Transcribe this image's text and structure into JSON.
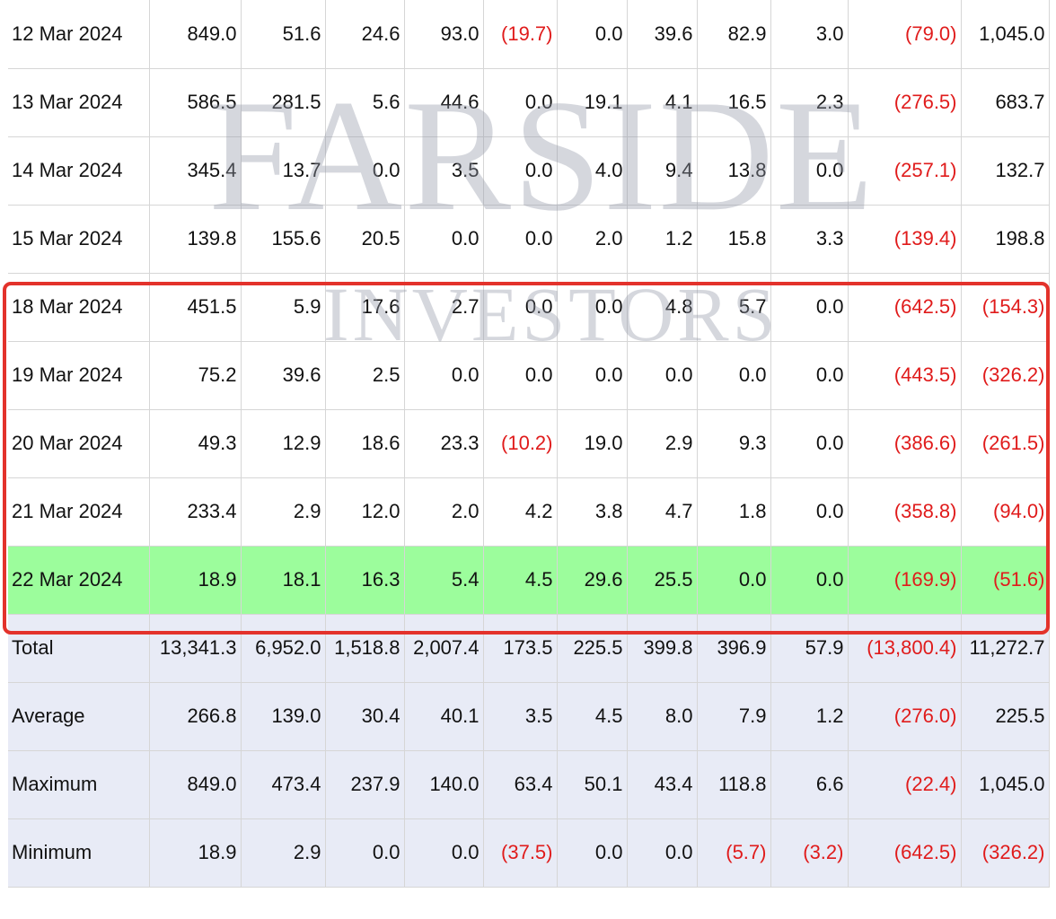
{
  "watermark": {
    "line1": "FARSIDE",
    "line2": "INVESTORS"
  },
  "rows": [
    {
      "date": "12 Mar 2024",
      "cells": [
        {
          "v": "849.0"
        },
        {
          "v": "51.6"
        },
        {
          "v": "24.6"
        },
        {
          "v": "93.0"
        },
        {
          "v": "(19.7)",
          "neg": true
        },
        {
          "v": "0.0"
        },
        {
          "v": "39.6"
        },
        {
          "v": "82.9"
        },
        {
          "v": "3.0"
        },
        {
          "v": "(79.0)",
          "neg": true
        },
        {
          "v": "1,045.0"
        }
      ]
    },
    {
      "date": "13 Mar 2024",
      "cells": [
        {
          "v": "586.5"
        },
        {
          "v": "281.5"
        },
        {
          "v": "5.6"
        },
        {
          "v": "44.6"
        },
        {
          "v": "0.0"
        },
        {
          "v": "19.1"
        },
        {
          "v": "4.1"
        },
        {
          "v": "16.5"
        },
        {
          "v": "2.3"
        },
        {
          "v": "(276.5)",
          "neg": true
        },
        {
          "v": "683.7"
        }
      ]
    },
    {
      "date": "14 Mar 2024",
      "cells": [
        {
          "v": "345.4"
        },
        {
          "v": "13.7"
        },
        {
          "v": "0.0"
        },
        {
          "v": "3.5"
        },
        {
          "v": "0.0"
        },
        {
          "v": "4.0"
        },
        {
          "v": "9.4"
        },
        {
          "v": "13.8"
        },
        {
          "v": "0.0"
        },
        {
          "v": "(257.1)",
          "neg": true
        },
        {
          "v": "132.7"
        }
      ]
    },
    {
      "date": "15 Mar 2024",
      "cells": [
        {
          "v": "139.8"
        },
        {
          "v": "155.6"
        },
        {
          "v": "20.5"
        },
        {
          "v": "0.0"
        },
        {
          "v": "0.0"
        },
        {
          "v": "2.0"
        },
        {
          "v": "1.2"
        },
        {
          "v": "15.8"
        },
        {
          "v": "3.3"
        },
        {
          "v": "(139.4)",
          "neg": true
        },
        {
          "v": "198.8"
        }
      ]
    },
    {
      "date": "18 Mar 2024",
      "cells": [
        {
          "v": "451.5"
        },
        {
          "v": "5.9"
        },
        {
          "v": "17.6"
        },
        {
          "v": "2.7"
        },
        {
          "v": "0.0"
        },
        {
          "v": "0.0"
        },
        {
          "v": "4.8"
        },
        {
          "v": "5.7"
        },
        {
          "v": "0.0"
        },
        {
          "v": "(642.5)",
          "neg": true
        },
        {
          "v": "(154.3)",
          "neg": true
        }
      ]
    },
    {
      "date": "19 Mar 2024",
      "cells": [
        {
          "v": "75.2"
        },
        {
          "v": "39.6"
        },
        {
          "v": "2.5"
        },
        {
          "v": "0.0"
        },
        {
          "v": "0.0"
        },
        {
          "v": "0.0"
        },
        {
          "v": "0.0"
        },
        {
          "v": "0.0"
        },
        {
          "v": "0.0"
        },
        {
          "v": "(443.5)",
          "neg": true
        },
        {
          "v": "(326.2)",
          "neg": true
        }
      ]
    },
    {
      "date": "20 Mar 2024",
      "cells": [
        {
          "v": "49.3"
        },
        {
          "v": "12.9"
        },
        {
          "v": "18.6"
        },
        {
          "v": "23.3"
        },
        {
          "v": "(10.2)",
          "neg": true
        },
        {
          "v": "19.0"
        },
        {
          "v": "2.9"
        },
        {
          "v": "9.3"
        },
        {
          "v": "0.0"
        },
        {
          "v": "(386.6)",
          "neg": true
        },
        {
          "v": "(261.5)",
          "neg": true
        }
      ]
    },
    {
      "date": "21 Mar 2024",
      "cells": [
        {
          "v": "233.4"
        },
        {
          "v": "2.9"
        },
        {
          "v": "12.0"
        },
        {
          "v": "2.0"
        },
        {
          "v": "4.2"
        },
        {
          "v": "3.8"
        },
        {
          "v": "4.7"
        },
        {
          "v": "1.8"
        },
        {
          "v": "0.0"
        },
        {
          "v": "(358.8)",
          "neg": true
        },
        {
          "v": "(94.0)",
          "neg": true
        }
      ]
    },
    {
      "date": "22 Mar 2024",
      "highlight": true,
      "cells": [
        {
          "v": "18.9"
        },
        {
          "v": "18.1"
        },
        {
          "v": "16.3"
        },
        {
          "v": "5.4"
        },
        {
          "v": "4.5"
        },
        {
          "v": "29.6"
        },
        {
          "v": "25.5"
        },
        {
          "v": "0.0"
        },
        {
          "v": "0.0"
        },
        {
          "v": "(169.9)",
          "neg": true
        },
        {
          "v": "(51.6)",
          "neg": true
        }
      ]
    },
    {
      "date": "Total",
      "summary": true,
      "cells": [
        {
          "v": "13,341.3"
        },
        {
          "v": "6,952.0"
        },
        {
          "v": "1,518.8"
        },
        {
          "v": "2,007.4"
        },
        {
          "v": "173.5"
        },
        {
          "v": "225.5"
        },
        {
          "v": "399.8"
        },
        {
          "v": "396.9"
        },
        {
          "v": "57.9"
        },
        {
          "v": "(13,800.4)",
          "neg": true
        },
        {
          "v": "11,272.7"
        }
      ]
    },
    {
      "date": "Average",
      "summary": true,
      "cells": [
        {
          "v": "266.8"
        },
        {
          "v": "139.0"
        },
        {
          "v": "30.4"
        },
        {
          "v": "40.1"
        },
        {
          "v": "3.5"
        },
        {
          "v": "4.5"
        },
        {
          "v": "8.0"
        },
        {
          "v": "7.9"
        },
        {
          "v": "1.2"
        },
        {
          "v": "(276.0)",
          "neg": true
        },
        {
          "v": "225.5"
        }
      ]
    },
    {
      "date": "Maximum",
      "summary": true,
      "cells": [
        {
          "v": "849.0"
        },
        {
          "v": "473.4"
        },
        {
          "v": "237.9"
        },
        {
          "v": "140.0"
        },
        {
          "v": "63.4"
        },
        {
          "v": "50.1"
        },
        {
          "v": "43.4"
        },
        {
          "v": "118.8"
        },
        {
          "v": "6.6"
        },
        {
          "v": "(22.4)",
          "neg": true
        },
        {
          "v": "1,045.0"
        }
      ]
    },
    {
      "date": "Minimum",
      "summary": true,
      "cells": [
        {
          "v": "18.9"
        },
        {
          "v": "2.9"
        },
        {
          "v": "0.0"
        },
        {
          "v": "0.0"
        },
        {
          "v": "(37.5)",
          "neg": true
        },
        {
          "v": "0.0"
        },
        {
          "v": "0.0"
        },
        {
          "v": "(5.7)",
          "neg": true
        },
        {
          "v": "(3.2)",
          "neg": true
        },
        {
          "v": "(642.5)",
          "neg": true
        },
        {
          "v": "(326.2)",
          "neg": true
        }
      ]
    }
  ],
  "colors": {
    "negative": "#e01b1b",
    "highlight_row": "#9cfd9c",
    "summary_row": "#e8ebf6",
    "annotation_box": "#e3322b"
  }
}
